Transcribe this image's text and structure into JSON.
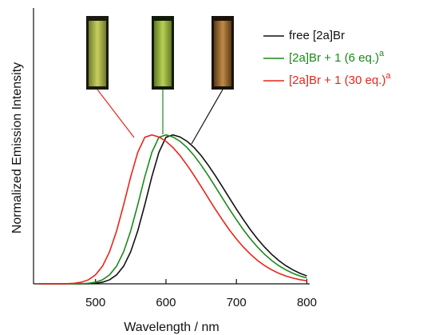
{
  "chart_data": {
    "type": "line",
    "xlabel": "Wavelength / nm",
    "ylabel": "Normalized Emission Intensity",
    "x": [
      420,
      430,
      440,
      450,
      460,
      470,
      480,
      490,
      500,
      510,
      520,
      530,
      540,
      550,
      560,
      570,
      580,
      590,
      600,
      610,
      620,
      630,
      640,
      650,
      660,
      670,
      680,
      690,
      700,
      710,
      720,
      730,
      740,
      750,
      760,
      770,
      780,
      790,
      800
    ],
    "series": [
      {
        "name": "free [2a]Br",
        "color": "#111111",
        "values": [
          0,
          0,
          0,
          0,
          0,
          0,
          0,
          0.001,
          0.004,
          0.011,
          0.027,
          0.06,
          0.119,
          0.216,
          0.356,
          0.531,
          0.719,
          0.882,
          0.983,
          0.999,
          0.985,
          0.956,
          0.914,
          0.86,
          0.796,
          0.726,
          0.652,
          0.576,
          0.501,
          0.43,
          0.362,
          0.301,
          0.246,
          0.198,
          0.157,
          0.122,
          0.094,
          0.071,
          0.053
        ]
      },
      {
        "name": "[2a]Br + 1 (6 eq.)",
        "note": "a",
        "color": "#1a8a1a",
        "values": [
          0,
          0,
          0,
          0,
          0,
          0,
          0.001,
          0.004,
          0.011,
          0.027,
          0.06,
          0.119,
          0.216,
          0.356,
          0.531,
          0.719,
          0.882,
          0.983,
          0.999,
          0.985,
          0.956,
          0.914,
          0.86,
          0.796,
          0.726,
          0.652,
          0.576,
          0.501,
          0.43,
          0.362,
          0.301,
          0.246,
          0.198,
          0.157,
          0.122,
          0.094,
          0.071,
          0.053,
          0.039
        ]
      },
      {
        "name": "[2a]Br + 1 (30 eq.)",
        "note": "a",
        "color": "#e8251a",
        "values": [
          0,
          0,
          0,
          0,
          0.001,
          0.004,
          0.011,
          0.027,
          0.06,
          0.119,
          0.216,
          0.356,
          0.531,
          0.719,
          0.882,
          0.983,
          0.999,
          0.985,
          0.956,
          0.914,
          0.86,
          0.796,
          0.726,
          0.652,
          0.576,
          0.501,
          0.43,
          0.362,
          0.301,
          0.246,
          0.198,
          0.157,
          0.122,
          0.094,
          0.071,
          0.053,
          0.039,
          0.028,
          0.02
        ]
      }
    ],
    "xlim": [
      412,
      804
    ],
    "xticks": [
      500,
      600,
      700,
      800
    ],
    "ylim": [
      0,
      1.85
    ],
    "grid": false
  }
}
